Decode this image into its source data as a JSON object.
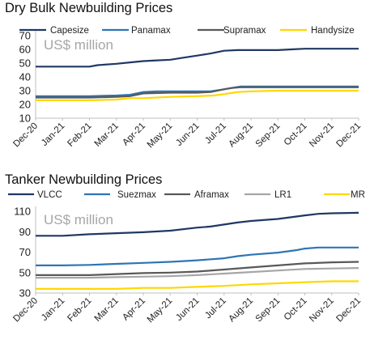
{
  "chart_data": [
    {
      "type": "line",
      "title": "Dry Bulk Newbuilding Prices",
      "annotation": "US$ million",
      "categories": [
        "Dec-20",
        "Jan-21",
        "Feb-21",
        "Mar-21",
        "Apr-21",
        "May-21",
        "Jun-21",
        "Jul-21",
        "Aug-21",
        "Sep-21",
        "Oct-21",
        "Nov-21",
        "Dec-21"
      ],
      "ylim": [
        10,
        70
      ],
      "yticks": [
        10,
        20,
        30,
        40,
        50,
        60,
        70
      ],
      "grid": false,
      "legend_position": "top",
      "series": [
        {
          "name": "Capesize",
          "color": "#1f3864",
          "points": [
            [
              0,
              47.5
            ],
            [
              1,
              47.5
            ],
            [
              2,
              47.5
            ],
            [
              2.3,
              48.5
            ],
            [
              3,
              49.5
            ],
            [
              3.5,
              50.5
            ],
            [
              4,
              51.5
            ],
            [
              4.5,
              52
            ],
            [
              5,
              52.5
            ],
            [
              5.5,
              54
            ],
            [
              6,
              55.5
            ],
            [
              6.5,
              57
            ],
            [
              7,
              59
            ],
            [
              7.5,
              59.5
            ],
            [
              8,
              59.5
            ],
            [
              9,
              59.5
            ],
            [
              9.5,
              60
            ],
            [
              10,
              60.5
            ],
            [
              11,
              60.5
            ],
            [
              12,
              60.5
            ]
          ]
        },
        {
          "name": "Panamax",
          "color": "#2e75b6",
          "points": [
            [
              0,
              26
            ],
            [
              1,
              26
            ],
            [
              2,
              26
            ],
            [
              3,
              26.5
            ],
            [
              3.5,
              27
            ],
            [
              4,
              29
            ],
            [
              4.5,
              29.5
            ],
            [
              5,
              29.5
            ],
            [
              6,
              29.5
            ],
            [
              6.5,
              29.5
            ],
            [
              7,
              31
            ],
            [
              7.3,
              32
            ],
            [
              7.6,
              33
            ],
            [
              8,
              33
            ],
            [
              9,
              33
            ],
            [
              10,
              33
            ],
            [
              11,
              33
            ],
            [
              12,
              33
            ]
          ]
        },
        {
          "name": "Supramax",
          "color": "#595959",
          "points": [
            [
              0,
              25
            ],
            [
              1,
              25
            ],
            [
              2,
              25
            ],
            [
              3,
              25.5
            ],
            [
              3.5,
              26
            ],
            [
              4,
              28
            ],
            [
              5,
              28.5
            ],
            [
              6,
              28.5
            ],
            [
              6.5,
              29
            ],
            [
              7,
              31
            ],
            [
              7.3,
              32
            ],
            [
              7.6,
              32.5
            ],
            [
              8,
              32.5
            ],
            [
              9,
              32.5
            ],
            [
              10,
              32.5
            ],
            [
              11,
              32.5
            ],
            [
              12,
              32.5
            ]
          ]
        },
        {
          "name": "Handysize",
          "color": "#ffd700",
          "points": [
            [
              0,
              23
            ],
            [
              1,
              23
            ],
            [
              2,
              23
            ],
            [
              3,
              23.5
            ],
            [
              3.5,
              24.5
            ],
            [
              4,
              24.5
            ],
            [
              5,
              25.5
            ],
            [
              6,
              26
            ],
            [
              6.6,
              26.5
            ],
            [
              7,
              27.5
            ],
            [
              7.5,
              29
            ],
            [
              8,
              29.5
            ],
            [
              9,
              30
            ],
            [
              10,
              30
            ],
            [
              11,
              30
            ],
            [
              12,
              30
            ]
          ]
        }
      ]
    },
    {
      "type": "line",
      "title": "Tanker Newbuilding Prices",
      "annotation": "US$ million",
      "categories": [
        "Dec-20",
        "Jan-21",
        "Feb-21",
        "Mar-21",
        "Apr-21",
        "May-21",
        "Jun-21",
        "Jul-21",
        "Aug-21",
        "Sep-21",
        "Oct-21",
        "Nov-21",
        "Dec-21"
      ],
      "ylim": [
        30,
        110
      ],
      "yticks": [
        30,
        50,
        70,
        90,
        110
      ],
      "grid": false,
      "legend_position": "top",
      "series": [
        {
          "name": "VLCC",
          "color": "#1f3864",
          "points": [
            [
              0,
              86
            ],
            [
              1,
              86
            ],
            [
              2,
              87.5
            ],
            [
              3,
              88.5
            ],
            [
              4,
              89.5
            ],
            [
              5,
              91
            ],
            [
              6,
              94
            ],
            [
              6.5,
              95
            ],
            [
              7,
              97
            ],
            [
              7.5,
              99
            ],
            [
              8,
              100.5
            ],
            [
              9,
              102.5
            ],
            [
              10,
              106
            ],
            [
              10.5,
              107.5
            ],
            [
              11,
              108
            ],
            [
              12,
              108.5
            ]
          ]
        },
        {
          "name": "Suezmax",
          "color": "#2e75b6",
          "points": [
            [
              0,
              57
            ],
            [
              1,
              57
            ],
            [
              2,
              57.5
            ],
            [
              3,
              58.5
            ],
            [
              4,
              59.5
            ],
            [
              5,
              60.5
            ],
            [
              6,
              62
            ],
            [
              7,
              64
            ],
            [
              7.5,
              66
            ],
            [
              8,
              67.5
            ],
            [
              9,
              69.5
            ],
            [
              9.7,
              72
            ],
            [
              10,
              73.5
            ],
            [
              10.5,
              74.5
            ],
            [
              11,
              74.5
            ],
            [
              12,
              74.5
            ]
          ]
        },
        {
          "name": "Aframax",
          "color": "#595959",
          "points": [
            [
              0,
              47.5
            ],
            [
              1,
              47.5
            ],
            [
              2,
              47.5
            ],
            [
              3,
              48.5
            ],
            [
              4,
              49.5
            ],
            [
              5,
              50
            ],
            [
              6,
              51
            ],
            [
              7,
              53
            ],
            [
              8,
              55
            ],
            [
              9,
              57
            ],
            [
              10,
              59
            ],
            [
              11,
              60
            ],
            [
              12,
              60.5
            ]
          ]
        },
        {
          "name": "LR1",
          "color": "#a6a6a6",
          "points": [
            [
              0,
              45
            ],
            [
              1,
              45
            ],
            [
              2,
              45
            ],
            [
              3,
              45.5
            ],
            [
              4,
              46
            ],
            [
              5,
              46.5
            ],
            [
              6,
              47.5
            ],
            [
              7,
              49
            ],
            [
              8,
              50.5
            ],
            [
              9,
              52
            ],
            [
              10,
              53.5
            ],
            [
              11,
              54
            ],
            [
              12,
              54.5
            ]
          ]
        },
        {
          "name": "MR",
          "color": "#ffd700",
          "points": [
            [
              0,
              34
            ],
            [
              1,
              34
            ],
            [
              2,
              34
            ],
            [
              3,
              34
            ],
            [
              4,
              35
            ],
            [
              5,
              35
            ],
            [
              6,
              36
            ],
            [
              7,
              37
            ],
            [
              8,
              38.5
            ],
            [
              9,
              39.5
            ],
            [
              10,
              40.5
            ],
            [
              11,
              41.5
            ],
            [
              12,
              41.5
            ]
          ]
        }
      ]
    }
  ]
}
